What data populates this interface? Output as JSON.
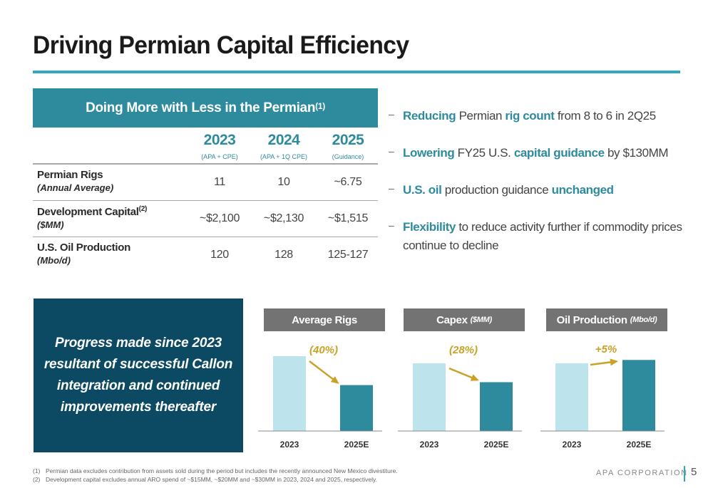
{
  "page": {
    "title": "Driving Permian Capital Efficiency",
    "page_number": "5",
    "brand": "APA CORPORATION"
  },
  "table": {
    "header": "Doing More with Less in the Permian",
    "header_note": "(1)",
    "columns": [
      {
        "year": "2023",
        "sub": "(APA + CPE)"
      },
      {
        "year": "2024",
        "sub": "(APA + 1Q CPE)"
      },
      {
        "year": "2025",
        "sub": "(Guidance)"
      }
    ],
    "rows": [
      {
        "label": "Permian Rigs",
        "note": "",
        "unit": "(Annual Average)",
        "values": [
          "11",
          "10",
          "~6.75"
        ]
      },
      {
        "label": "Development Capital",
        "note": "(2)",
        "unit": "($MM)",
        "values": [
          "~$2,100",
          "~$2,130",
          "~$1,515"
        ]
      },
      {
        "label": "U.S. Oil Production",
        "note": "",
        "unit": "(Mbo/d)",
        "values": [
          "120",
          "128",
          "125-127"
        ]
      }
    ]
  },
  "bullets": {
    "marker": "–",
    "items": [
      [
        {
          "t": "Reducing",
          "hl": true
        },
        {
          "t": " Permian "
        },
        {
          "t": "rig count",
          "hl": true
        },
        {
          "t": " from 8 to 6 in 2Q25"
        }
      ],
      [
        {
          "t": "Lowering",
          "hl": true
        },
        {
          "t": " FY25 U.S. "
        },
        {
          "t": "capital guidance",
          "hl": true
        },
        {
          "t": " by $130MM"
        }
      ],
      [
        {
          "t": "U.S. oil",
          "hl": true
        },
        {
          "t": " production guidance "
        },
        {
          "t": "unchanged",
          "hl": true
        }
      ],
      [
        {
          "t": "Flexibility",
          "hl": true
        },
        {
          "t": " to reduce activity further if commodity prices continue to decline"
        }
      ]
    ]
  },
  "callout": {
    "text": "Progress made since 2023 resultant of successful Callon integration and continued improvements thereafter"
  },
  "colors": {
    "teal": "#2e8b9e",
    "light_bar": "#bde3ec",
    "dark_bar": "#2e8b9e",
    "gold": "#c9a227",
    "navy": "#0c4a63",
    "title_gray": "#737373"
  },
  "chart_data": [
    {
      "type": "bar",
      "title": "Average Rigs",
      "title_unit": "",
      "categories": [
        "2023",
        "2025E"
      ],
      "values": [
        11,
        6.75
      ],
      "annotation": "(40%)",
      "arrow": "down"
    },
    {
      "type": "bar",
      "title": "Capex",
      "title_unit": "($MM)",
      "categories": [
        "2023",
        "2025E"
      ],
      "values": [
        2100,
        1515
      ],
      "annotation": "(28%)",
      "arrow": "down"
    },
    {
      "type": "bar",
      "title": "Oil Production",
      "title_unit": "(Mbo/d)",
      "categories": [
        "2023",
        "2025E"
      ],
      "values": [
        120,
        126
      ],
      "annotation": "+5%",
      "arrow": "up"
    }
  ],
  "footnotes": [
    {
      "num": "(1)",
      "text": "Permian data excludes contribution from assets sold during the period but includes the recently announced New Mexico divestiture."
    },
    {
      "num": "(2)",
      "text": "Development capital excludes annual ARO spend of ~$15MM, ~$20MM and ~$30MM in 2023, 2024 and 2025, respectively."
    }
  ]
}
